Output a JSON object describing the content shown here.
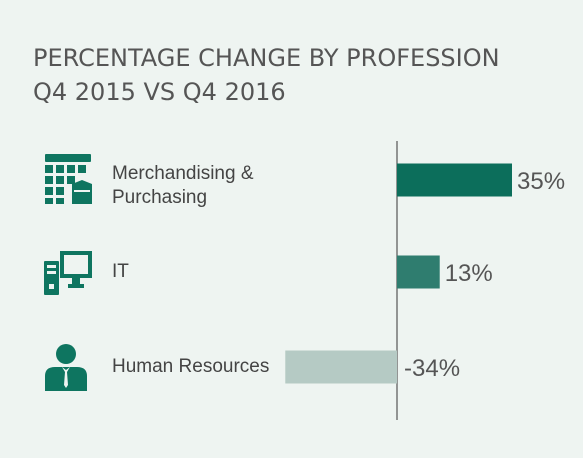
{
  "title_lines": [
    "PERCENTAGE CHANGE BY PROFESSION",
    "Q4 2015 VS Q4 2016"
  ],
  "colors": {
    "background": "#eef4f1",
    "title": "#555555",
    "label": "#444444",
    "icon": "#0e7560",
    "axis": "#555555"
  },
  "rows": [
    {
      "label_lines": [
        "Merchandising &",
        "Purchasing"
      ],
      "icon": "calendar-grid-icon"
    },
    {
      "label_lines": [
        "IT"
      ],
      "icon": "computer-icon"
    },
    {
      "label_lines": [
        "Human Resources"
      ],
      "icon": "person-icon"
    }
  ],
  "chart_data": {
    "type": "bar",
    "orientation": "horizontal",
    "title": "PERCENTAGE CHANGE BY PROFESSION Q4 2015 VS Q4 2016",
    "categories": [
      "Merchandising & Purchasing",
      "IT",
      "Human Resources"
    ],
    "values": [
      35,
      13,
      -34
    ],
    "value_labels": [
      "35%",
      "13%",
      "-34%"
    ],
    "bar_colors": [
      "#0c6e5b",
      "#2f7d6f",
      "#b5cac4"
    ],
    "unit": "%",
    "grid": false,
    "legend": "none"
  }
}
